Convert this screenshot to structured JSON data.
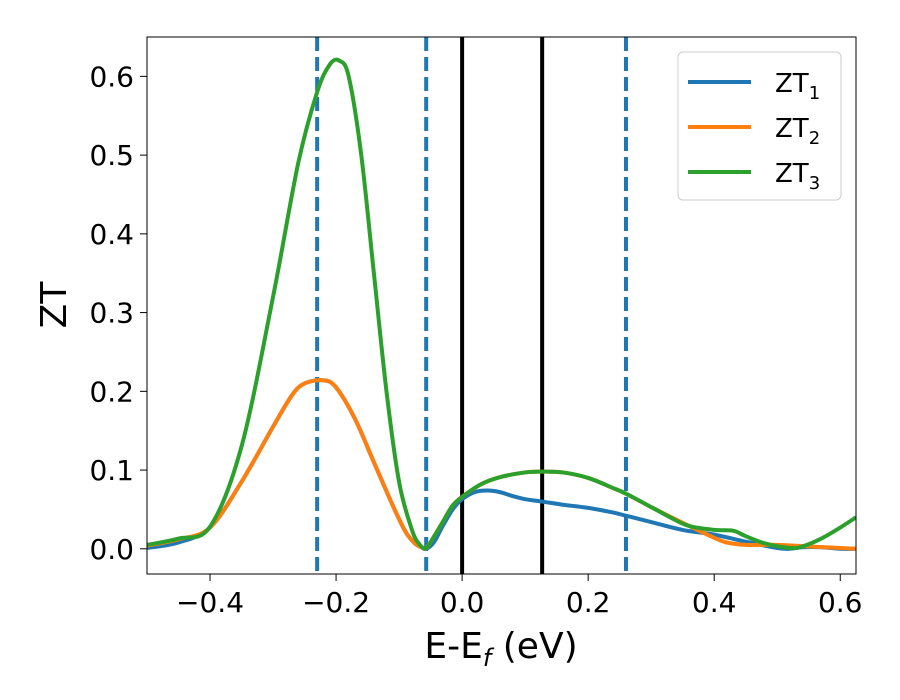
{
  "chart_data": {
    "type": "line",
    "xlabel": "E-E",
    "xlabel_sub": "f",
    "xlabel_unit": " (eV)",
    "ylabel": "ZT",
    "xlim": [
      -0.5,
      0.625
    ],
    "ylim": [
      -0.032,
      0.65
    ],
    "xticks": [
      -0.4,
      -0.2,
      0.0,
      0.2,
      0.4,
      0.6
    ],
    "xtick_labels": [
      "−0.4",
      "−0.2",
      "0.0",
      "0.2",
      "0.4",
      "0.6"
    ],
    "yticks": [
      0.0,
      0.1,
      0.2,
      0.3,
      0.4,
      0.5,
      0.6
    ],
    "ytick_labels": [
      "0.0",
      "0.1",
      "0.2",
      "0.3",
      "0.4",
      "0.5",
      "0.6"
    ],
    "grid": false,
    "legend_position": "top-right",
    "vlines": [
      {
        "x": -0.23,
        "style": "dashed",
        "color": "#1f77b4"
      },
      {
        "x": -0.057,
        "style": "dashed",
        "color": "#1f77b4"
      },
      {
        "x": 0.0,
        "style": "solid",
        "color": "#000000"
      },
      {
        "x": 0.127,
        "style": "solid",
        "color": "#000000"
      },
      {
        "x": 0.26,
        "style": "dashed",
        "color": "#1f77b4"
      }
    ],
    "series": [
      {
        "name": "ZT",
        "name_sub": "1",
        "color": "#1f77b4",
        "points": [
          [
            -0.5,
            0.001
          ],
          [
            -0.45,
            0.008
          ],
          [
            -0.4,
            0.027
          ],
          [
            -0.35,
            0.085
          ],
          [
            -0.3,
            0.155
          ],
          [
            -0.27,
            0.195
          ],
          [
            -0.25,
            0.21
          ],
          [
            -0.22,
            0.214
          ],
          [
            -0.2,
            0.205
          ],
          [
            -0.17,
            0.165
          ],
          [
            -0.14,
            0.11
          ],
          [
            -0.11,
            0.055
          ],
          [
            -0.09,
            0.022
          ],
          [
            -0.075,
            0.007
          ],
          [
            -0.065,
            0.002
          ],
          [
            -0.057,
            0.0
          ],
          [
            -0.045,
            0.008
          ],
          [
            -0.03,
            0.03
          ],
          [
            -0.015,
            0.05
          ],
          [
            0.0,
            0.063
          ],
          [
            0.02,
            0.072
          ],
          [
            0.04,
            0.074
          ],
          [
            0.06,
            0.072
          ],
          [
            0.08,
            0.067
          ],
          [
            0.1,
            0.063
          ],
          [
            0.127,
            0.06
          ],
          [
            0.16,
            0.056
          ],
          [
            0.2,
            0.052
          ],
          [
            0.24,
            0.046
          ],
          [
            0.26,
            0.042
          ],
          [
            0.3,
            0.034
          ],
          [
            0.35,
            0.024
          ],
          [
            0.4,
            0.018
          ],
          [
            0.45,
            0.009
          ],
          [
            0.5,
            0.001
          ],
          [
            0.52,
            0.0
          ],
          [
            0.54,
            0.002
          ],
          [
            0.57,
            0.002
          ],
          [
            0.6,
            0.0
          ],
          [
            0.625,
            0.0
          ]
        ]
      },
      {
        "name": "ZT",
        "name_sub": "2",
        "color": "#ff7f0e",
        "points": [
          [
            -0.5,
            0.004
          ],
          [
            -0.45,
            0.012
          ],
          [
            -0.4,
            0.027
          ],
          [
            -0.35,
            0.085
          ],
          [
            -0.3,
            0.155
          ],
          [
            -0.27,
            0.195
          ],
          [
            -0.25,
            0.21
          ],
          [
            -0.22,
            0.214
          ],
          [
            -0.2,
            0.205
          ],
          [
            -0.17,
            0.165
          ],
          [
            -0.14,
            0.11
          ],
          [
            -0.11,
            0.055
          ],
          [
            -0.09,
            0.022
          ],
          [
            -0.075,
            0.007
          ],
          [
            -0.065,
            0.002
          ],
          [
            -0.057,
            0.001
          ],
          [
            -0.045,
            0.015
          ],
          [
            -0.03,
            0.035
          ],
          [
            -0.015,
            0.055
          ],
          [
            0.0,
            0.066
          ],
          [
            0.03,
            0.082
          ],
          [
            0.06,
            0.091
          ],
          [
            0.1,
            0.097
          ],
          [
            0.127,
            0.098
          ],
          [
            0.16,
            0.097
          ],
          [
            0.2,
            0.09
          ],
          [
            0.24,
            0.077
          ],
          [
            0.26,
            0.07
          ],
          [
            0.3,
            0.053
          ],
          [
            0.35,
            0.033
          ],
          [
            0.4,
            0.014
          ],
          [
            0.42,
            0.008
          ],
          [
            0.45,
            0.005
          ],
          [
            0.5,
            0.005
          ],
          [
            0.55,
            0.003
          ],
          [
            0.6,
            0.001
          ],
          [
            0.625,
            0.0
          ]
        ]
      },
      {
        "name": "ZT",
        "name_sub": "3",
        "color": "#2ca02c",
        "points": [
          [
            -0.5,
            0.005
          ],
          [
            -0.45,
            0.013
          ],
          [
            -0.4,
            0.028
          ],
          [
            -0.35,
            0.13
          ],
          [
            -0.3,
            0.32
          ],
          [
            -0.26,
            0.49
          ],
          [
            -0.23,
            0.58
          ],
          [
            -0.21,
            0.615
          ],
          [
            -0.195,
            0.62
          ],
          [
            -0.18,
            0.6
          ],
          [
            -0.16,
            0.5
          ],
          [
            -0.14,
            0.35
          ],
          [
            -0.12,
            0.2
          ],
          [
            -0.1,
            0.085
          ],
          [
            -0.08,
            0.025
          ],
          [
            -0.068,
            0.006
          ],
          [
            -0.057,
            0.001
          ],
          [
            -0.045,
            0.015
          ],
          [
            -0.03,
            0.035
          ],
          [
            -0.015,
            0.055
          ],
          [
            0.0,
            0.066
          ],
          [
            0.03,
            0.082
          ],
          [
            0.06,
            0.091
          ],
          [
            0.1,
            0.097
          ],
          [
            0.127,
            0.098
          ],
          [
            0.16,
            0.097
          ],
          [
            0.2,
            0.09
          ],
          [
            0.24,
            0.077
          ],
          [
            0.26,
            0.07
          ],
          [
            0.3,
            0.053
          ],
          [
            0.33,
            0.04
          ],
          [
            0.36,
            0.029
          ],
          [
            0.4,
            0.024
          ],
          [
            0.43,
            0.023
          ],
          [
            0.45,
            0.016
          ],
          [
            0.48,
            0.007
          ],
          [
            0.52,
            0.001
          ],
          [
            0.54,
            0.003
          ],
          [
            0.57,
            0.013
          ],
          [
            0.6,
            0.027
          ],
          [
            0.625,
            0.04
          ]
        ]
      }
    ]
  }
}
